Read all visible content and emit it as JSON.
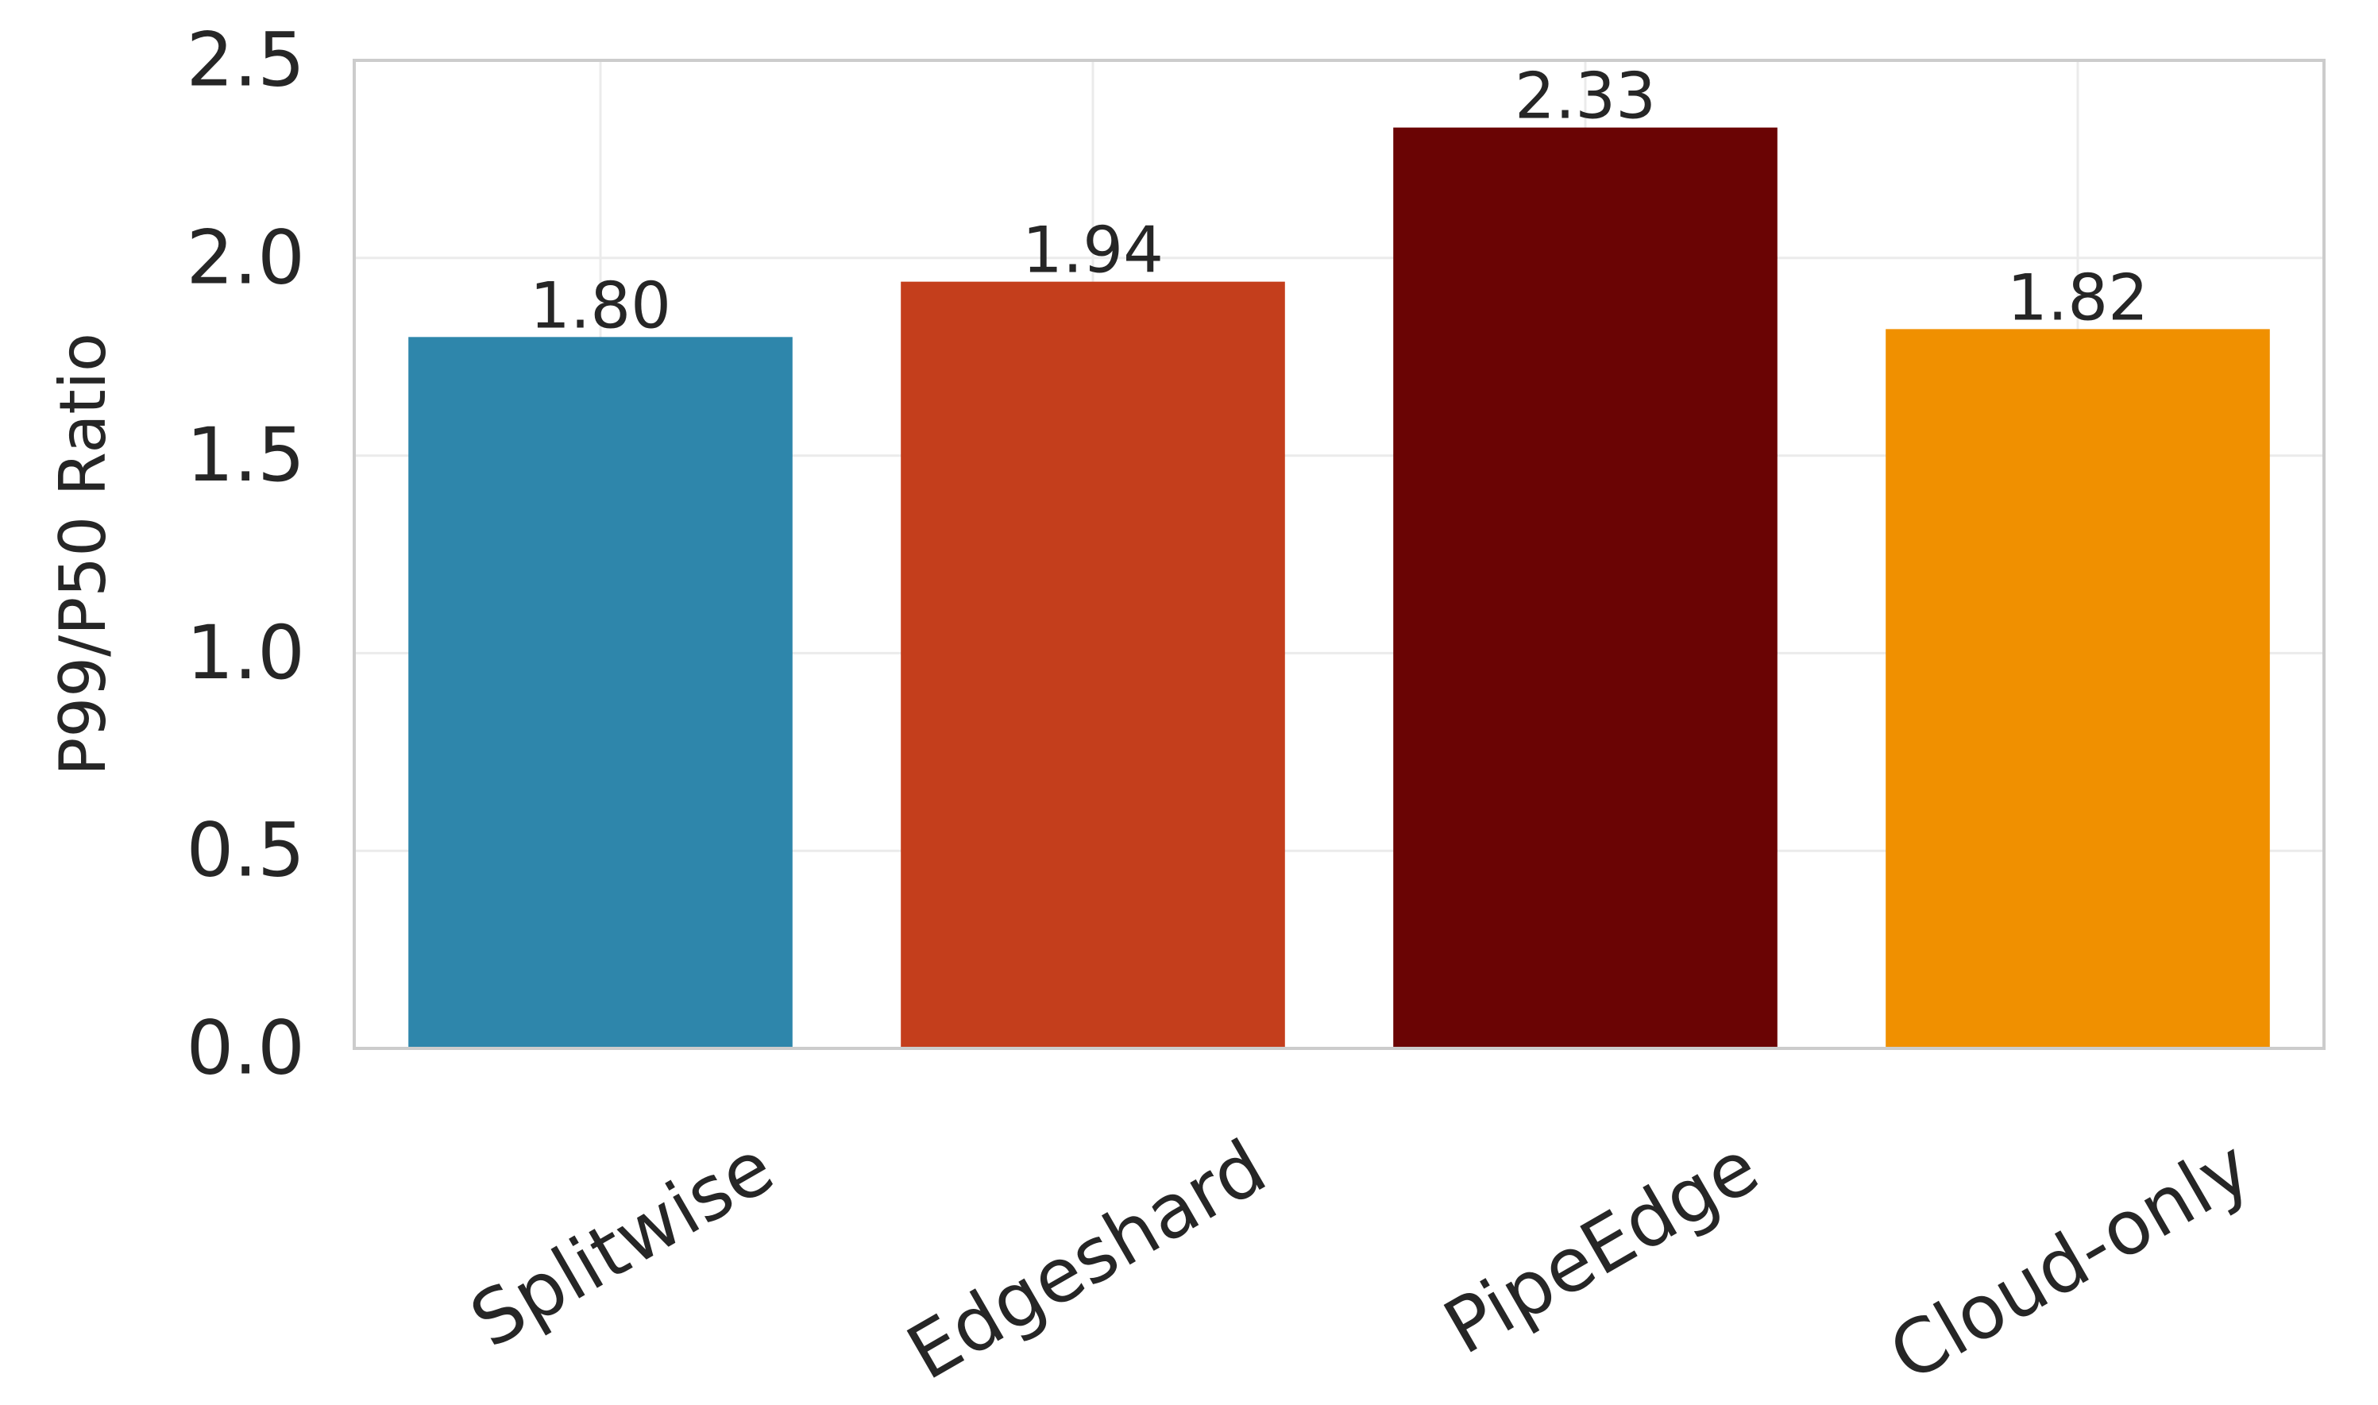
{
  "chart_data": {
    "type": "bar",
    "title": "",
    "xlabel": "",
    "ylabel": "P99/P50 Ratio",
    "categories": [
      "Splitwise",
      "Edgeshard",
      "PipeEdge",
      "Cloud-only"
    ],
    "values": [
      1.8,
      1.94,
      2.33,
      1.82
    ],
    "value_labels": [
      "1.80",
      "1.94",
      "2.33",
      "1.82"
    ],
    "colors": [
      "#2e86ab",
      "#c43e1c",
      "#6a0404",
      "#f09000"
    ],
    "ylim": [
      0,
      2.5
    ],
    "yticks": [
      0.0,
      0.5,
      1.0,
      1.5,
      2.0,
      2.5
    ],
    "ytick_labels": [
      "0.0",
      "0.5",
      "1.0",
      "1.5",
      "2.0",
      "2.5"
    ],
    "grid": true
  }
}
